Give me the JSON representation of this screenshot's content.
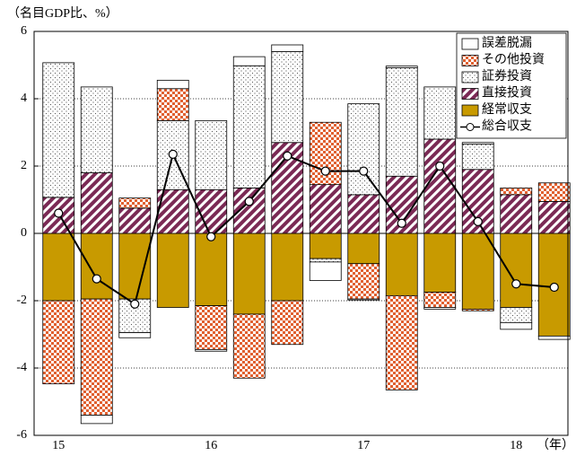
{
  "chart_data": {
    "type": "bar",
    "y_label": "（名目GDP比、%）",
    "x_label": "（年）",
    "categories": [
      "15",
      null,
      null,
      null,
      "16",
      null,
      null,
      null,
      "17",
      null,
      null,
      null,
      "18",
      null
    ],
    "ylim": [
      -6,
      6
    ],
    "yticks": [
      -6,
      -4,
      -2,
      0,
      2,
      4,
      6
    ],
    "grid": true,
    "legend": "upper right",
    "series": [
      {
        "name": "誤差脱漏",
        "color": "#ffffff",
        "pattern": "none",
        "values": [
          0,
          -0.25,
          -0.15,
          0.25,
          -0.05,
          0.27,
          0.2,
          -0.55,
          -0.03,
          0.05,
          -0.05,
          0.05,
          -0.2,
          -0.1
        ]
      },
      {
        "name": "その他投資",
        "color": "#e06030",
        "pattern": "check",
        "values": [
          -2.47,
          -3.45,
          0.3,
          0.95,
          -1.3,
          -1.9,
          -1.3,
          1.85,
          -1.05,
          -2.8,
          -0.45,
          -0.05,
          0.2,
          0.55
        ]
      },
      {
        "name": "証券投資",
        "color": "#555555",
        "pattern": "dots",
        "values": [
          4.0,
          2.55,
          -1.0,
          2.05,
          2.05,
          3.63,
          2.7,
          -0.1,
          2.7,
          3.22,
          1.55,
          0.75,
          -0.45,
          0
        ]
      },
      {
        "name": "直接投資",
        "color": "#7b2a55",
        "pattern": "stripes",
        "values": [
          1.07,
          1.8,
          0.75,
          1.3,
          1.3,
          1.35,
          2.7,
          1.45,
          1.15,
          1.7,
          2.8,
          1.9,
          1.15,
          0.95
        ]
      },
      {
        "name": "経常収支",
        "color": "#c89a00",
        "pattern": "solid",
        "values": [
          -2.0,
          -1.95,
          -1.95,
          -2.2,
          -2.15,
          -2.4,
          -2.0,
          -0.75,
          -0.9,
          -1.85,
          -1.75,
          -2.25,
          -2.2,
          -3.05
        ]
      },
      {
        "name": "総合収支",
        "type": "line",
        "color": "#000000",
        "values": [
          0.6,
          -1.35,
          -2.1,
          2.35,
          -0.1,
          0.95,
          2.3,
          1.85,
          1.85,
          0.3,
          2.0,
          0.35,
          -1.5,
          -1.6
        ]
      }
    ]
  }
}
